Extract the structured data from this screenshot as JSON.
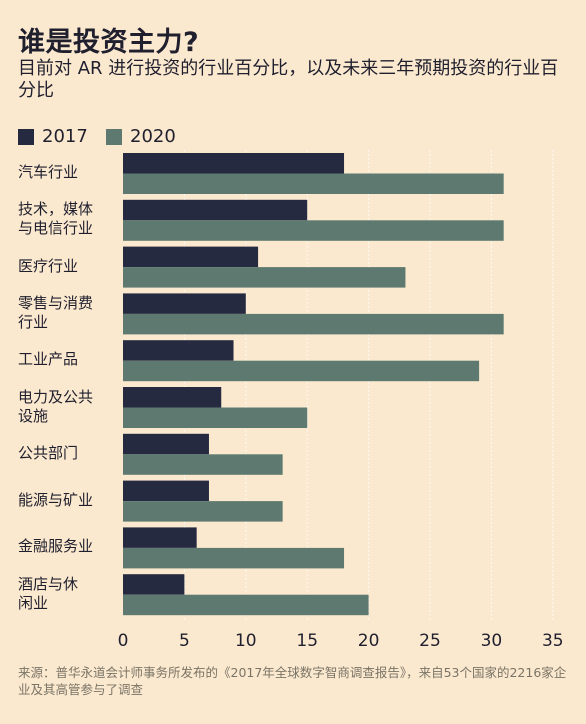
{
  "title": "谁是投资主力?",
  "subtitle": "目前对 AR 进行投资的行业百分比，以及未来三年预期投资的行业百分比",
  "source": "来源：普华永道会计师事务所发布的《2017年全球数字智商调查报告》，来自53个国家的2216家企业及其高管参与了调查",
  "colors": {
    "s2017": "#262a40",
    "s2020": "#5e7a70",
    "background": "#fbe9cf",
    "grid": "#ffffff"
  },
  "chart_data": {
    "type": "bar",
    "orientation": "horizontal",
    "categories": [
      "汽车行业",
      "技术，媒体与电信行业",
      "医疗行业",
      "零售与消费行业",
      "工业产品",
      "电力及公共设施",
      "公共部门",
      "能源与矿业",
      "金融服务业",
      "酒店与休闲业"
    ],
    "category_lines": [
      [
        "汽车行业"
      ],
      [
        "技术，媒体",
        "与电信行业"
      ],
      [
        "医疗行业"
      ],
      [
        "零售与消费",
        "行业"
      ],
      [
        "工业产品"
      ],
      [
        "电力及公共",
        "设施"
      ],
      [
        "公共部门"
      ],
      [
        "能源与矿业"
      ],
      [
        "金融服务业"
      ],
      [
        "酒店与休",
        "闲业"
      ]
    ],
    "series": [
      {
        "name": "2017",
        "values": [
          18,
          15,
          11,
          10,
          9,
          8,
          7,
          7,
          6,
          5
        ]
      },
      {
        "name": "2020",
        "values": [
          31,
          31,
          23,
          31,
          29,
          15,
          13,
          13,
          18,
          20
        ]
      }
    ],
    "xlim": [
      0,
      35
    ],
    "xticks": [
      0,
      5,
      10,
      15,
      20,
      25,
      30,
      35
    ],
    "grid": true,
    "legend_position": "top-left"
  }
}
